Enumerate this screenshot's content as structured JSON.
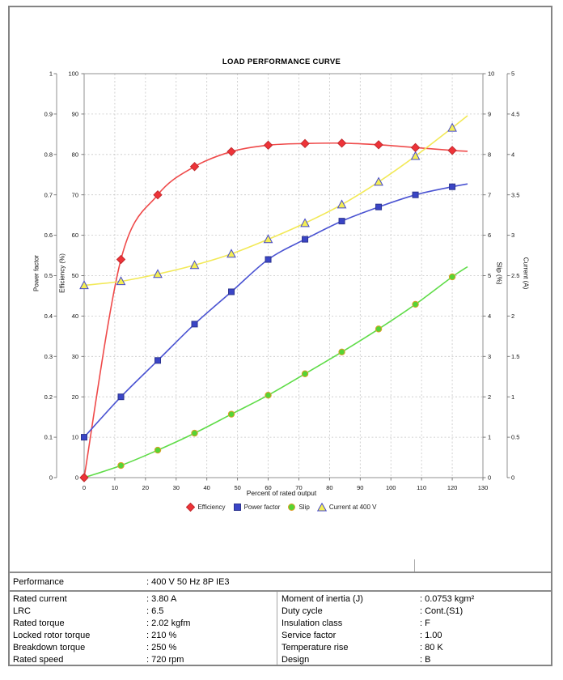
{
  "chart_data": {
    "type": "line",
    "title": "LOAD PERFORMANCE CURVE",
    "xlabel": "Percent of rated output",
    "grid": true,
    "legend_position": "bottom",
    "x_axis": {
      "min": 0,
      "max": 130,
      "tick_labels": [
        "0",
        "10",
        "20",
        "30",
        "40",
        "50",
        "60",
        "70",
        "80",
        "90",
        "100",
        "110",
        "120",
        "130"
      ]
    },
    "axes": {
      "power_factor": {
        "label": "Power factor",
        "min": 0,
        "max": 1,
        "tick_labels": [
          "0",
          "0.1",
          "0.2",
          "0.3",
          "0.4",
          "0.5",
          "0.6",
          "0.7",
          "0.8",
          "0.9",
          "1"
        ]
      },
      "efficiency": {
        "label": "Efficiency (%)",
        "min": 0,
        "max": 100,
        "tick_labels": [
          "0",
          "10",
          "20",
          "30",
          "40",
          "50",
          "60",
          "70",
          "80",
          "90",
          "100"
        ]
      },
      "slip": {
        "label": "Slip (%)",
        "min": 0,
        "max": 10,
        "tick_labels": [
          "0",
          "1",
          "2",
          "3",
          "4",
          "5",
          "6",
          "7",
          "8",
          "9",
          "10"
        ]
      },
      "current": {
        "label": "Current (A)",
        "min": 0,
        "max": 5,
        "tick_labels": [
          "0",
          "0.5",
          "1",
          "1.5",
          "2",
          "2.5",
          "3",
          "3.5",
          "4",
          "4.5",
          "5"
        ]
      }
    },
    "series": [
      {
        "name": "Efficiency",
        "axis": "efficiency",
        "marker": "diamond",
        "color": "#ee3338",
        "marker_edge": "#c02a2e",
        "line_color": "#ef4a4a",
        "x": [
          0,
          12,
          24,
          36,
          48,
          60,
          72,
          84,
          96,
          108,
          120
        ],
        "values": [
          0,
          54,
          70,
          77,
          80.7,
          82.3,
          82.7,
          82.8,
          82.4,
          81.7,
          81
        ],
        "line_end": {
          "x": 125,
          "value": 80.8
        }
      },
      {
        "name": "Power factor",
        "axis": "power_factor",
        "marker": "square",
        "color": "#3a45c6",
        "marker_edge": "#2b338f",
        "line_color": "#4a53d2",
        "x": [
          0,
          12,
          24,
          36,
          48,
          60,
          72,
          84,
          96,
          108,
          120
        ],
        "values": [
          0.1,
          0.2,
          0.29,
          0.38,
          0.46,
          0.54,
          0.59,
          0.635,
          0.67,
          0.7,
          0.72
        ],
        "line_end": {
          "x": 125,
          "value": 0.727
        }
      },
      {
        "name": "Slip",
        "axis": "slip",
        "marker": "circle",
        "color": "#55d434",
        "marker_edge": "#dd9f28",
        "line_color": "#5fdc48",
        "x": [
          0,
          12,
          24,
          36,
          48,
          60,
          72,
          84,
          96,
          108,
          120
        ],
        "values": [
          0,
          0.3,
          0.68,
          1.1,
          1.57,
          2.04,
          2.57,
          3.11,
          3.68,
          4.29,
          4.97
        ],
        "line_end": {
          "x": 125,
          "value": 5.22
        }
      },
      {
        "name": "Current at 400 V",
        "axis": "current",
        "marker": "triangle",
        "color": "#f4ee54",
        "marker_edge": "#4549cc",
        "line_color": "#f2e957",
        "x": [
          0,
          12,
          24,
          36,
          48,
          60,
          72,
          84,
          96,
          108,
          120
        ],
        "values": [
          2.38,
          2.43,
          2.52,
          2.63,
          2.77,
          2.95,
          3.15,
          3.38,
          3.66,
          3.98,
          4.33
        ],
        "line_end": {
          "x": 125,
          "value": 4.48
        }
      }
    ]
  },
  "table": {
    "header_row": {
      "label": "Performance",
      "value": ": 400 V 50 Hz 8P IE3"
    },
    "rows": [
      {
        "label1": "Rated current",
        "value1": ": 3.80 A",
        "label2": "Moment of inertia (J)",
        "value2": ": 0.0753 kgm²"
      },
      {
        "label1": "LRC",
        "value1": ": 6.5",
        "label2": "Duty cycle",
        "value2": ": Cont.(S1)"
      },
      {
        "label1": "Rated torque",
        "value1": ": 2.02 kgfm",
        "label2": "Insulation class",
        "value2": ": F"
      },
      {
        "label1": "Locked rotor torque",
        "value1": ": 210 %",
        "label2": "Service factor",
        "value2": ": 1.00"
      },
      {
        "label1": "Breakdown torque",
        "value1": ": 250 %",
        "label2": "Temperature rise",
        "value2": ": 80 K"
      },
      {
        "label1": "Rated speed",
        "value1": ": 720 rpm",
        "label2": "Design",
        "value2": ": B"
      }
    ]
  }
}
